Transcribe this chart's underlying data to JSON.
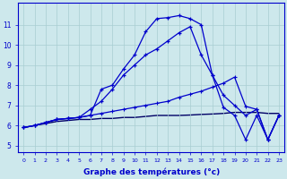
{
  "xlabel": "Graphe des températures (°c)",
  "background_color": "#cde8ec",
  "grid_color": "#a8cdd2",
  "line_color": "#0000cc",
  "xlim": [
    -0.5,
    23.5
  ],
  "ylim": [
    4.7,
    12.1
  ],
  "x_ticks": [
    0,
    1,
    2,
    3,
    4,
    5,
    6,
    7,
    8,
    9,
    10,
    11,
    12,
    13,
    14,
    15,
    16,
    17,
    18,
    19,
    20,
    21,
    22,
    23
  ],
  "y_ticks": [
    5,
    6,
    7,
    8,
    9,
    10,
    11
  ],
  "c1_x": [
    0,
    1,
    2,
    3,
    4,
    5,
    6,
    7,
    8,
    9,
    10,
    11,
    12,
    13,
    14,
    15,
    16,
    17,
    18,
    19,
    20,
    21,
    22,
    23
  ],
  "c1_y": [
    5.9,
    6.0,
    6.15,
    6.3,
    6.35,
    6.4,
    6.5,
    7.8,
    8.0,
    8.8,
    9.5,
    10.65,
    11.3,
    11.35,
    11.45,
    11.3,
    11.0,
    8.5,
    6.9,
    6.5,
    5.3,
    6.5,
    5.3,
    6.5
  ],
  "c2_x": [
    0,
    1,
    2,
    3,
    4,
    5,
    6,
    7,
    8,
    9,
    10,
    11,
    12,
    13,
    14,
    15,
    16,
    17,
    18,
    19,
    20,
    21,
    22,
    23
  ],
  "c2_y": [
    5.9,
    6.0,
    6.15,
    6.3,
    6.35,
    6.4,
    6.8,
    7.2,
    7.8,
    8.5,
    9.0,
    9.5,
    9.8,
    10.2,
    10.6,
    10.9,
    9.5,
    8.5,
    7.5,
    7.0,
    6.5,
    6.8,
    5.3,
    6.5
  ],
  "c3_x": [
    0,
    1,
    2,
    3,
    4,
    5,
    6,
    7,
    8,
    9,
    10,
    11,
    12,
    13,
    14,
    15,
    16,
    17,
    18,
    19,
    20,
    21,
    22,
    23
  ],
  "c3_y": [
    5.9,
    6.0,
    6.15,
    6.3,
    6.35,
    6.4,
    6.5,
    6.6,
    6.7,
    6.8,
    6.9,
    7.0,
    7.1,
    7.2,
    7.4,
    7.55,
    7.7,
    7.9,
    8.1,
    8.4,
    6.95,
    6.8,
    5.3,
    6.5
  ],
  "c4_x": [
    0,
    1,
    2,
    3,
    4,
    5,
    6,
    7,
    8,
    9,
    10,
    11,
    12,
    13,
    14,
    15,
    16,
    17,
    18,
    19,
    20,
    21,
    22,
    23
  ],
  "c4_y": [
    5.9,
    6.0,
    6.1,
    6.2,
    6.25,
    6.3,
    6.3,
    6.35,
    6.35,
    6.4,
    6.4,
    6.45,
    6.5,
    6.5,
    6.5,
    6.52,
    6.55,
    6.57,
    6.6,
    6.65,
    6.65,
    6.65,
    6.6,
    6.6
  ]
}
